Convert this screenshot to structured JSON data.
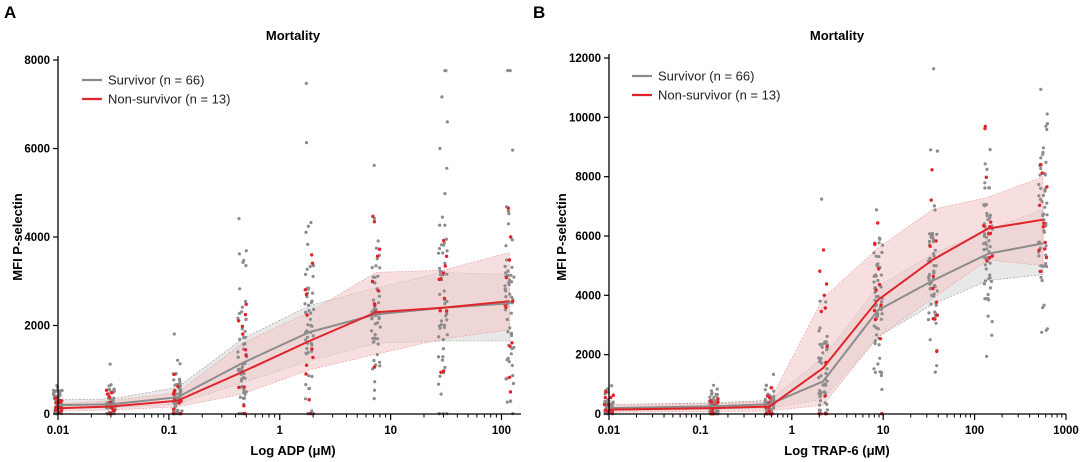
{
  "colors": {
    "survivor": "#8c8c8c",
    "non_survivor": "#e0242a",
    "survivor_band": "#d9d9d9",
    "non_survivor_band": "#f4c9c9",
    "axis": "#000000"
  },
  "chart_data": [
    {
      "type": "line",
      "panel_label": "A",
      "title": "Mortality",
      "xlabel": "Log ADP (μM)",
      "ylabel": "MFI P-selectin",
      "xscale": "log",
      "xlim": [
        0.01,
        150
      ],
      "ylim": [
        0,
        8000
      ],
      "xticks": [
        0.01,
        0.1,
        1,
        10,
        100
      ],
      "xtick_labels": [
        "0.01",
        "0.1",
        "1",
        "10",
        "100"
      ],
      "yticks": [
        0,
        2000,
        4000,
        6000,
        8000
      ],
      "ytick_labels": [
        "0",
        "2000",
        "4000",
        "6000",
        "8000"
      ],
      "legend_position": "top-left",
      "x": [
        0.01,
        0.03,
        0.12,
        0.46,
        1.85,
        7.4,
        29.6,
        118
      ],
      "series": [
        {
          "name": "Survivor (n = 66)",
          "role": "survivor",
          "values": [
            200,
            220,
            380,
            1150,
            1850,
            2250,
            2400,
            2500
          ],
          "band_low": [
            120,
            140,
            230,
            700,
            1200,
            1600,
            1650,
            1650
          ],
          "band_high": [
            320,
            340,
            600,
            1700,
            2450,
            2850,
            3200,
            3150
          ]
        },
        {
          "name": "Non-survivor (n = 13)",
          "role": "non_survivor",
          "values": [
            130,
            170,
            300,
            950,
            1650,
            2300,
            2400,
            2550
          ],
          "band_low": [
            60,
            90,
            160,
            450,
            1000,
            1350,
            1700,
            1900
          ],
          "band_high": [
            230,
            300,
            480,
            1600,
            2300,
            3200,
            3250,
            3650
          ]
        }
      ],
      "annotations": [
        "scattered individual points per concentration (grey = survivor, red = non-survivor)"
      ]
    },
    {
      "type": "line",
      "panel_label": "B",
      "title": "Mortality",
      "xlabel": "Log TRAP-6 (μM)",
      "ylabel": "MFI P-selectin",
      "xscale": "log",
      "xlim": [
        0.01,
        1000
      ],
      "ylim": [
        0,
        12000
      ],
      "xticks": [
        0.01,
        0.1,
        1,
        10,
        100,
        1000
      ],
      "xtick_labels": [
        "0.01",
        "0.1",
        "1",
        "10",
        "100",
        "1000"
      ],
      "yticks": [
        0,
        2000,
        4000,
        6000,
        8000,
        10000,
        12000
      ],
      "ytick_labels": [
        "0",
        "2000",
        "4000",
        "6000",
        "8000",
        "10000",
        "12000"
      ],
      "legend_position": "top-left",
      "x": [
        0.01,
        0.14,
        0.57,
        2.2,
        8.8,
        35,
        140,
        560
      ],
      "series": [
        {
          "name": "Survivor (n = 66)",
          "role": "survivor",
          "values": [
            200,
            260,
            330,
            1100,
            3500,
            4500,
            5400,
            5750
          ],
          "band_low": [
            100,
            160,
            200,
            500,
            2600,
            3700,
            4500,
            4700
          ],
          "band_high": [
            320,
            380,
            460,
            1900,
            4300,
            5400,
            6200,
            6900
          ]
        },
        {
          "name": "Non-survivor (n = 13)",
          "role": "non_survivor",
          "values": [
            150,
            200,
            250,
            1550,
            3850,
            5200,
            6250,
            6550
          ],
          "band_low": [
            60,
            80,
            100,
            300,
            2600,
            3900,
            5200,
            5000
          ],
          "band_high": [
            320,
            350,
            420,
            3900,
            5600,
            6900,
            7300,
            8000
          ]
        }
      ],
      "annotations": [
        "scattered individual points per concentration (grey = survivor, red = non-survivor)"
      ]
    }
  ]
}
